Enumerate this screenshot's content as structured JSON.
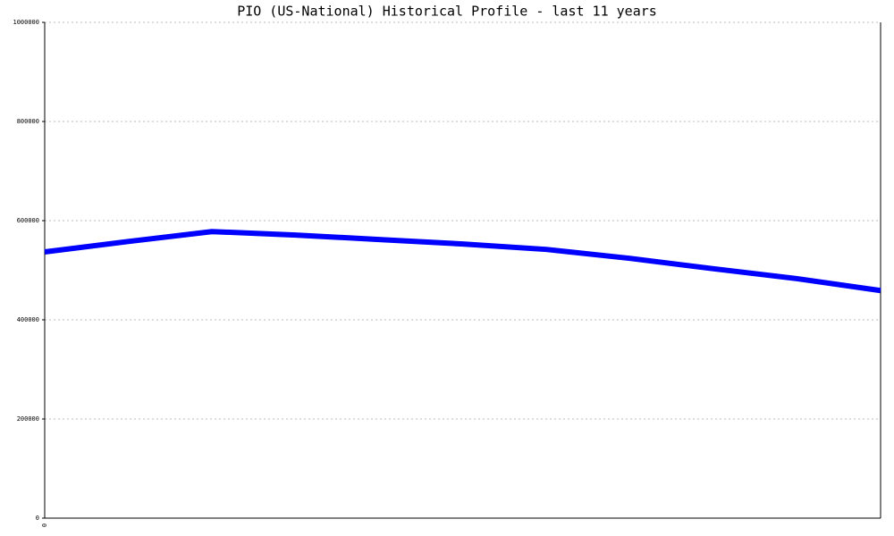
{
  "chart_data": {
    "type": "line",
    "title": "PIO (US-National) Historical Profile - last 11 years",
    "categories": [
      "0",
      null,
      null,
      null,
      null,
      null,
      null,
      null,
      null,
      null,
      null
    ],
    "series": [
      {
        "name": "PIO",
        "color": "#0000ff",
        "values": [
          537000,
          558000,
          578000,
          571000,
          562000,
          553000,
          542000,
          524000,
          503000,
          483000,
          459000
        ]
      }
    ],
    "ylim": [
      0,
      1000000
    ],
    "yticks": [
      0,
      200000,
      400000,
      600000,
      800000,
      1000000
    ],
    "grid": true
  }
}
